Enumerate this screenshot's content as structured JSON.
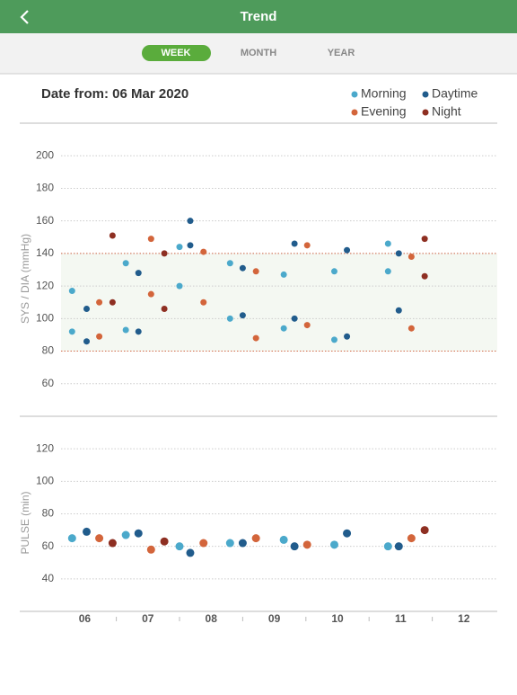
{
  "header": {
    "title": "Trend"
  },
  "tabs": [
    "WEEK",
    "MONTH",
    "YEAR"
  ],
  "date_label": "Date from: 06 Mar 2020",
  "chart_data": [
    {
      "type": "scatter",
      "y_label": "SYS / DIA (mmHg)",
      "xlim": [
        5,
        12.5
      ],
      "ylim": [
        40,
        220
      ],
      "yticks": [
        60,
        80,
        100,
        120,
        140,
        160,
        180,
        200
      ],
      "normal_range": [
        80,
        140
      ],
      "grid": true,
      "series": [
        {
          "name": "Morning",
          "color": "#4ba9cb",
          "x": [
            5.8,
            5.8,
            6.65,
            6.65,
            7.5,
            7.5,
            8.3,
            8.3,
            9.15,
            9.15,
            9.95,
            9.95,
            10.8,
            10.8
          ],
          "values": [
            117,
            92,
            134,
            93,
            144,
            120,
            134,
            100,
            127,
            94,
            129,
            87,
            146,
            129
          ]
        },
        {
          "name": "Daytime",
          "color": "#215c8c",
          "x": [
            6.03,
            6.03,
            6.85,
            6.85,
            7.67,
            7.67,
            8.5,
            8.5,
            9.32,
            9.32,
            10.15,
            10.15,
            10.97,
            10.97
          ],
          "values": [
            106,
            86,
            128,
            92,
            160,
            145,
            131,
            102,
            146,
            100,
            142,
            89,
            140,
            105
          ]
        },
        {
          "name": "Evening",
          "color": "#d3653b",
          "x": [
            6.23,
            6.23,
            7.05,
            7.05,
            7.88,
            7.88,
            8.71,
            8.71,
            9.52,
            9.52,
            11.17,
            11.17
          ],
          "values": [
            110,
            89,
            149,
            115,
            141,
            110,
            129,
            88,
            145,
            96,
            138,
            94
          ]
        },
        {
          "name": "Night",
          "color": "#8e2f22",
          "x": [
            6.44,
            6.44,
            7.26,
            7.26,
            11.38,
            11.38
          ],
          "values": [
            151,
            110,
            140,
            106,
            149,
            126
          ]
        }
      ]
    },
    {
      "type": "scatter",
      "y_label": "PULSE (min)",
      "xlim": [
        5,
        12.5
      ],
      "ylim": [
        20,
        140
      ],
      "yticks": [
        40,
        60,
        80,
        100,
        120
      ],
      "grid": true,
      "xticks": [
        {
          "value": 6,
          "label": "06"
        },
        {
          "value": 7,
          "label": "07"
        },
        {
          "value": 8,
          "label": "08"
        },
        {
          "value": 9,
          "label": "09"
        },
        {
          "value": 10,
          "label": "10"
        },
        {
          "value": 11,
          "label": "11"
        },
        {
          "value": 12,
          "label": "12"
        }
      ],
      "series": [
        {
          "color": "#4ba9cb",
          "x": [
            5.8,
            6.65,
            7.5,
            8.3,
            9.15,
            9.95,
            10.8
          ],
          "values": [
            65,
            67,
            60,
            62,
            64,
            61,
            60
          ]
        },
        {
          "color": "#215c8c",
          "x": [
            6.03,
            6.85,
            7.67,
            8.5,
            9.32,
            10.15,
            10.97
          ],
          "values": [
            69,
            68,
            56,
            62,
            60,
            68,
            60
          ]
        },
        {
          "color": "#d3653b",
          "x": [
            6.23,
            7.05,
            7.88,
            8.71,
            9.52,
            11.17
          ],
          "values": [
            65,
            58,
            62,
            65,
            61,
            65
          ]
        },
        {
          "color": "#8e2f22",
          "x": [
            6.44,
            7.26,
            11.38
          ],
          "values": [
            62,
            63,
            70
          ]
        }
      ]
    }
  ]
}
